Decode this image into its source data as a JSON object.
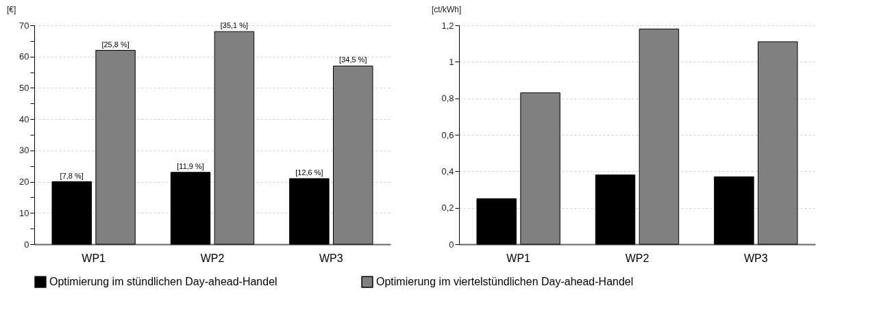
{
  "chart_data": [
    {
      "type": "bar",
      "ylabel": "[€]",
      "categories": [
        "WP1",
        "WP2",
        "WP3"
      ],
      "ylim": [
        0,
        70
      ],
      "yticks": [
        0,
        {
          "value": 5,
          "label": null
        },
        10,
        {
          "value": 15,
          "label": null
        },
        20,
        {
          "value": 25,
          "label": null
        },
        30,
        {
          "value": 35,
          "label": null
        },
        40,
        {
          "value": 45,
          "label": null
        },
        50,
        {
          "value": 55,
          "label": null
        },
        60,
        {
          "value": 65,
          "label": null
        },
        70
      ],
      "grid": "y",
      "legend": "bottom",
      "annotations": [
        {
          "text": "[7,8 %]",
          "x": "WP1",
          "y": 20
        },
        {
          "text": "[25,8 %]",
          "x": "WP1",
          "y": 62
        },
        {
          "text": "[11,9 %]",
          "x": "WP2",
          "y": 23
        },
        {
          "text": "[35,1 %]",
          "x": "WP2",
          "y": 68
        },
        {
          "text": "[12,6 %]",
          "x": "WP3",
          "y": 21
        },
        {
          "text": "[34,5 %]",
          "x": "WP3",
          "y": 57
        }
      ],
      "series": [
        {
          "name": "Optimierung im stündlichen Day-ahead-Handel",
          "color": "#000000",
          "values": [
            20,
            23,
            21
          ]
        },
        {
          "name": "Optimierung im viertelstündlichen Day-ahead-Handel",
          "color": "#808080",
          "values": [
            62,
            68,
            57
          ]
        }
      ]
    },
    {
      "type": "bar",
      "ylabel": "[ct/kWh]",
      "categories": [
        "WP1",
        "WP2",
        "WP3"
      ],
      "ylim": [
        0,
        1.2
      ],
      "yticks": [
        0,
        {
          "value": 0.2,
          "label": "0,2"
        },
        {
          "value": 0.4,
          "label": "0,4"
        },
        {
          "value": 0.6,
          "label": "0,6"
        },
        {
          "value": 0.8,
          "label": "0,8"
        },
        1,
        {
          "value": 1.2,
          "label": "1,2"
        }
      ],
      "grid": "y",
      "legend": "bottom",
      "series": [
        {
          "name": "Optimierung im stündlichen Day-ahead-Handel",
          "color": "#000000",
          "values": [
            0.25,
            0.38,
            0.37
          ]
        },
        {
          "name": "Optimierung im viertelstündlichen Day-ahead-Handel",
          "color": "#808080",
          "values": [
            0.83,
            1.18,
            1.11
          ]
        }
      ]
    }
  ]
}
